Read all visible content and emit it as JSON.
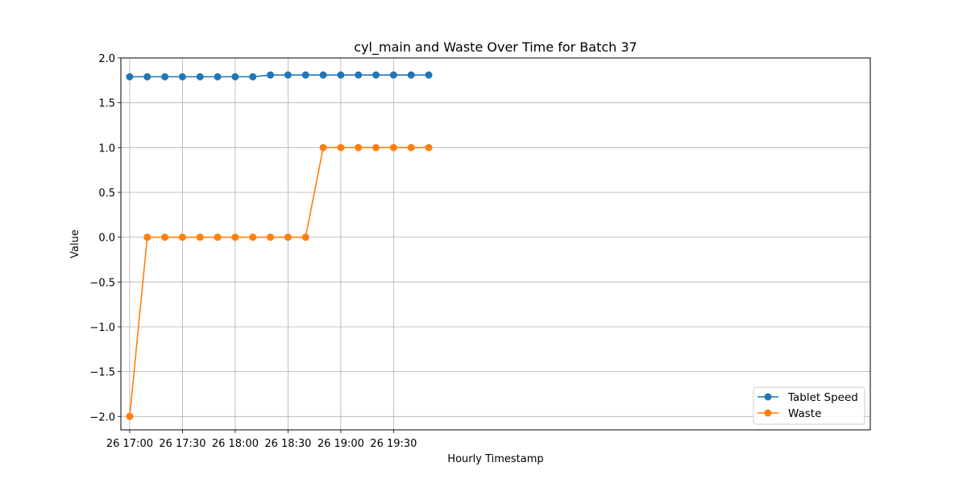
{
  "chart_data": {
    "type": "line",
    "title": "cyl_main and Waste Over Time for Batch 37",
    "xlabel": "Hourly Timestamp",
    "ylabel": "Value",
    "ylim": [
      -2.15,
      2.0
    ],
    "yticks": [
      -2.0,
      -1.5,
      -1.0,
      -0.5,
      0.0,
      0.5,
      1.0,
      1.5,
      2.0
    ],
    "ytick_labels": [
      "−2.0",
      "−1.5",
      "−1.0",
      "−0.5",
      "0.0",
      "0.5",
      "1.0",
      "1.5",
      "2.0"
    ],
    "xlim": [
      "26 16:55",
      "27 00:01"
    ],
    "xticks": [
      "26 17:00",
      "26 17:30",
      "26 18:00",
      "26 18:30",
      "26 19:00",
      "26 19:30"
    ],
    "xtick_labels": [
      "26 17:00",
      "26 17:30",
      "26 18:00",
      "26 18:30",
      "26 19:00",
      "26 19:30"
    ],
    "x": [
      "26 17:00",
      "26 17:10",
      "26 17:20",
      "26 17:30",
      "26 17:40",
      "26 17:50",
      "26 18:00",
      "26 18:10",
      "26 18:20",
      "26 18:30",
      "26 18:40",
      "26 18:50",
      "26 19:00",
      "26 19:10",
      "26 19:20",
      "26 19:30",
      "26 19:40",
      "26 19:50"
    ],
    "series": [
      {
        "name": "Tablet Speed",
        "color": "#1f77b4",
        "values": [
          1.79,
          1.79,
          1.79,
          1.79,
          1.79,
          1.79,
          1.79,
          1.79,
          1.81,
          1.81,
          1.81,
          1.81,
          1.81,
          1.81,
          1.81,
          1.81,
          1.81,
          1.81
        ]
      },
      {
        "name": "Waste",
        "color": "#ff7f0e",
        "values": [
          -2.0,
          0.0,
          0.0,
          0.0,
          0.0,
          0.0,
          0.0,
          0.0,
          0.0,
          0.0,
          0.0,
          1.0,
          1.0,
          1.0,
          1.0,
          1.0,
          1.0,
          1.0
        ]
      }
    ],
    "grid": true,
    "legend_position": "lower-right"
  }
}
